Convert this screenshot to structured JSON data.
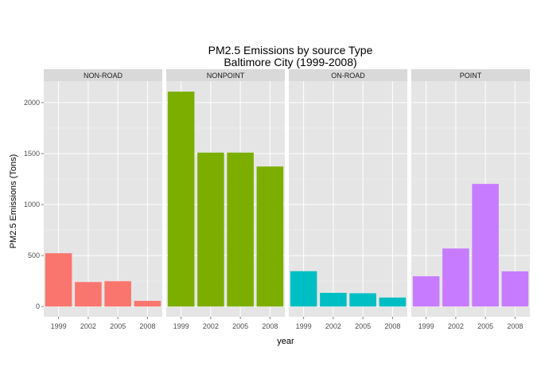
{
  "chart_data": {
    "type": "bar",
    "title_line1": "PM2.5 Emissions by source Type",
    "title_line2": "Baltimore City (1999-2008)",
    "xlabel": "year",
    "ylabel": "PM2.5 Emissions (Tons)",
    "categories": [
      "1999",
      "2002",
      "2005",
      "2008"
    ],
    "ylim": [
      -100,
      2210
    ],
    "y_ticks": [
      0,
      500,
      1000,
      1500,
      2000
    ],
    "y_tick_labels": [
      "0",
      "500",
      "1000",
      "1500",
      "2000"
    ],
    "grid": true,
    "facets": [
      {
        "name": "NON-ROAD",
        "color": "#F8766D",
        "values": [
          522.9,
          240.8,
          248.9,
          55.8
        ]
      },
      {
        "name": "NONPOINT",
        "color": "#7CAE00",
        "values": [
          2107.6,
          1509.5,
          1509.5,
          1373.2
        ]
      },
      {
        "name": "ON-ROAD",
        "color": "#00BFC4",
        "values": [
          346.8,
          134.3,
          130.4,
          88.3
        ]
      },
      {
        "name": "POINT",
        "color": "#C77CFF",
        "values": [
          296.8,
          569.3,
          1202.5,
          345.0
        ]
      }
    ]
  }
}
